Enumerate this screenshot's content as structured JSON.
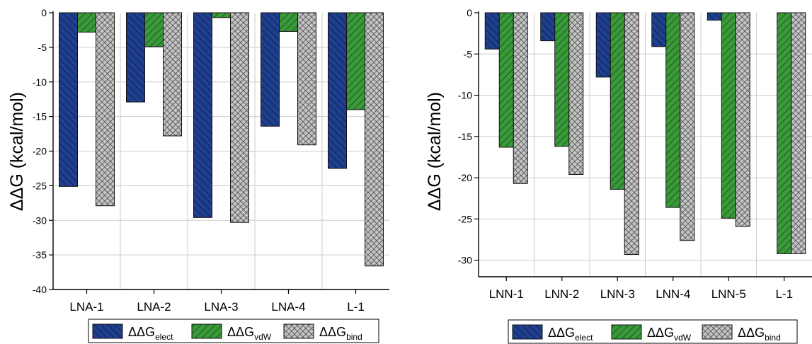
{
  "colors": {
    "elect": "#1f3f8f",
    "vdw": "#3a9a3a",
    "bind": "#c4c4c4",
    "grid": "#cccccc",
    "axis": "#000000"
  },
  "chart_data": [
    {
      "type": "bar",
      "ylabel": "ΔΔG (kcal/mol)",
      "ylim": [
        -40,
        0
      ],
      "yticks": [
        0,
        -5,
        -10,
        -15,
        -20,
        -25,
        -30,
        -35,
        -40
      ],
      "ytick_labels": [
        "0",
        "-5",
        "-10",
        "-15",
        "-20",
        "-25",
        "-30",
        "-35",
        "-40"
      ],
      "categories": [
        "LNA-1",
        "LNA-2",
        "LNA-3",
        "LNA-4",
        "L-1"
      ],
      "series": [
        {
          "name": "ΔΔGelect",
          "values": [
            -25.1,
            -12.9,
            -29.6,
            -16.4,
            -22.5
          ]
        },
        {
          "name": "ΔΔGvdW",
          "values": [
            -2.8,
            -4.9,
            -0.7,
            -2.7,
            -14.0
          ]
        },
        {
          "name": "ΔΔGbind",
          "values": [
            -27.9,
            -17.8,
            -30.3,
            -19.1,
            -36.6
          ]
        }
      ],
      "legend": [
        {
          "base": "ΔΔG",
          "sub": "elect"
        },
        {
          "base": "ΔΔG",
          "sub": "vdW"
        },
        {
          "base": "ΔΔG",
          "sub": "bind"
        }
      ],
      "grid": true,
      "legend_position": "bottom"
    },
    {
      "type": "bar",
      "ylabel": "ΔΔG (kcal/mol)",
      "ylim": [
        -32,
        0
      ],
      "yticks": [
        0,
        -5,
        -10,
        -15,
        -20,
        -25,
        -30
      ],
      "ytick_labels": [
        "0",
        "-5",
        "-10",
        "-15",
        "-20",
        "-25",
        "-30"
      ],
      "categories": [
        "LNN-1",
        "LNN-2",
        "LNN-3",
        "LNN-4",
        "LNN-5",
        "L-1"
      ],
      "series": [
        {
          "name": "ΔΔGelect",
          "values": [
            -4.4,
            -3.4,
            -7.8,
            -4.1,
            -0.9,
            null
          ]
        },
        {
          "name": "ΔΔGvdW",
          "values": [
            -16.3,
            -16.2,
            -21.4,
            -23.6,
            -24.9,
            -29.2
          ]
        },
        {
          "name": "ΔΔGbind",
          "values": [
            -20.7,
            -19.6,
            -29.3,
            -27.6,
            -25.9,
            -29.2
          ]
        }
      ],
      "legend": [
        {
          "base": "ΔΔG",
          "sub": "elect"
        },
        {
          "base": "ΔΔG",
          "sub": "vdW"
        },
        {
          "base": "ΔΔG",
          "sub": "bind"
        }
      ],
      "grid": true,
      "legend_position": "bottom"
    }
  ]
}
